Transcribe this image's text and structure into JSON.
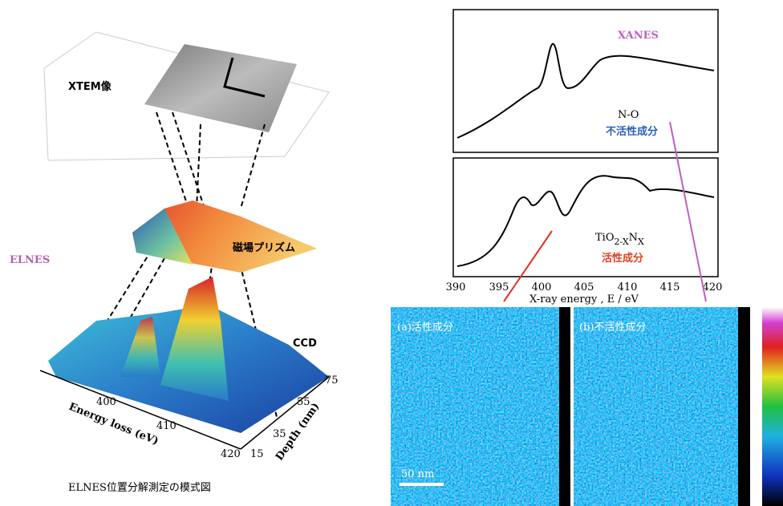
{
  "left": {
    "image_label": "XTEM像",
    "method_label": "ELNES",
    "prism_label": "磁場プリズム",
    "detector_label": "CCD",
    "energy_axis": {
      "label": "Energy loss (eV)",
      "ticks": [
        400,
        410,
        420
      ]
    },
    "depth_axis": {
      "label": "Depth (nm)",
      "ticks": [
        15,
        35,
        55,
        75
      ]
    },
    "caption": "ELNES位置分解測定の模式図"
  },
  "right": {
    "title": "XANES",
    "upper": {
      "species": "N-O",
      "component": "不活性成分"
    },
    "lower": {
      "species": {
        "base": "TiO",
        "sub1": "2-X",
        "mid": "N",
        "sub2": "X"
      },
      "component": "活性成分"
    },
    "x_axis": {
      "label": "X-ray energy , E / eV",
      "ticks": [
        390,
        395,
        400,
        405,
        410,
        415,
        420
      ]
    },
    "maps": [
      {
        "label": "(a)活性成分"
      },
      {
        "label": "(b)不活性成分"
      }
    ],
    "scale_bar": "50 nm"
  }
}
